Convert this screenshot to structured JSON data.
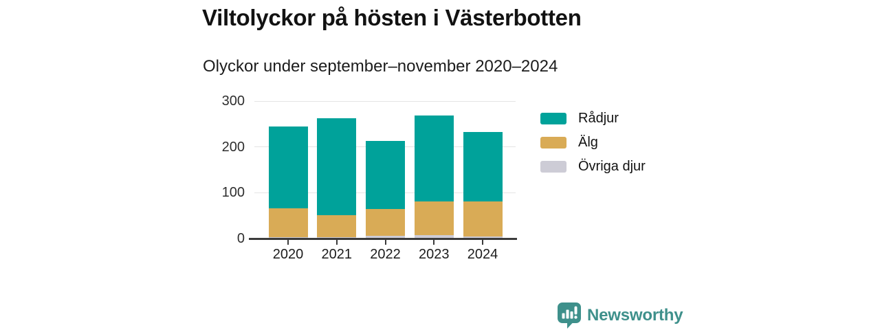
{
  "header": {
    "title": "Viltolyckor på hösten i Västerbotten",
    "subtitle": "Olyckor under september–november 2020–2024"
  },
  "chart_data": {
    "type": "bar",
    "stacked": true,
    "title": "Viltolyckor på hösten i Västerbotten",
    "subtitle": "Olyckor under september–november 2020–2024",
    "categories": [
      "2020",
      "2021",
      "2022",
      "2023",
      "2024"
    ],
    "series": [
      {
        "name": "Rådjur",
        "color": "#00a29a",
        "values": [
          179,
          212,
          149,
          187,
          152
        ]
      },
      {
        "name": "Älg",
        "color": "#d9ab56",
        "values": [
          63,
          48,
          58,
          74,
          76
        ]
      },
      {
        "name": "Övriga djur",
        "color": "#cdccd6",
        "values": [
          4,
          4,
          8,
          9,
          6
        ]
      }
    ],
    "totals": [
      246,
      264,
      215,
      270,
      234
    ],
    "xlabel": "",
    "ylabel": "",
    "ylim": [
      0,
      300
    ],
    "yticks": [
      0,
      100,
      200,
      300
    ],
    "grid": true,
    "legend_position": "right"
  },
  "footer": {
    "brand": "Newsworthy"
  },
  "colors": {
    "axis": "#3b3b3b",
    "grid": "#e4e4e4",
    "brand_teal": "#3e908b",
    "bar_radjur": "#00a29a",
    "bar_alg": "#d9ab56",
    "bar_ovriga": "#cdccd6"
  }
}
